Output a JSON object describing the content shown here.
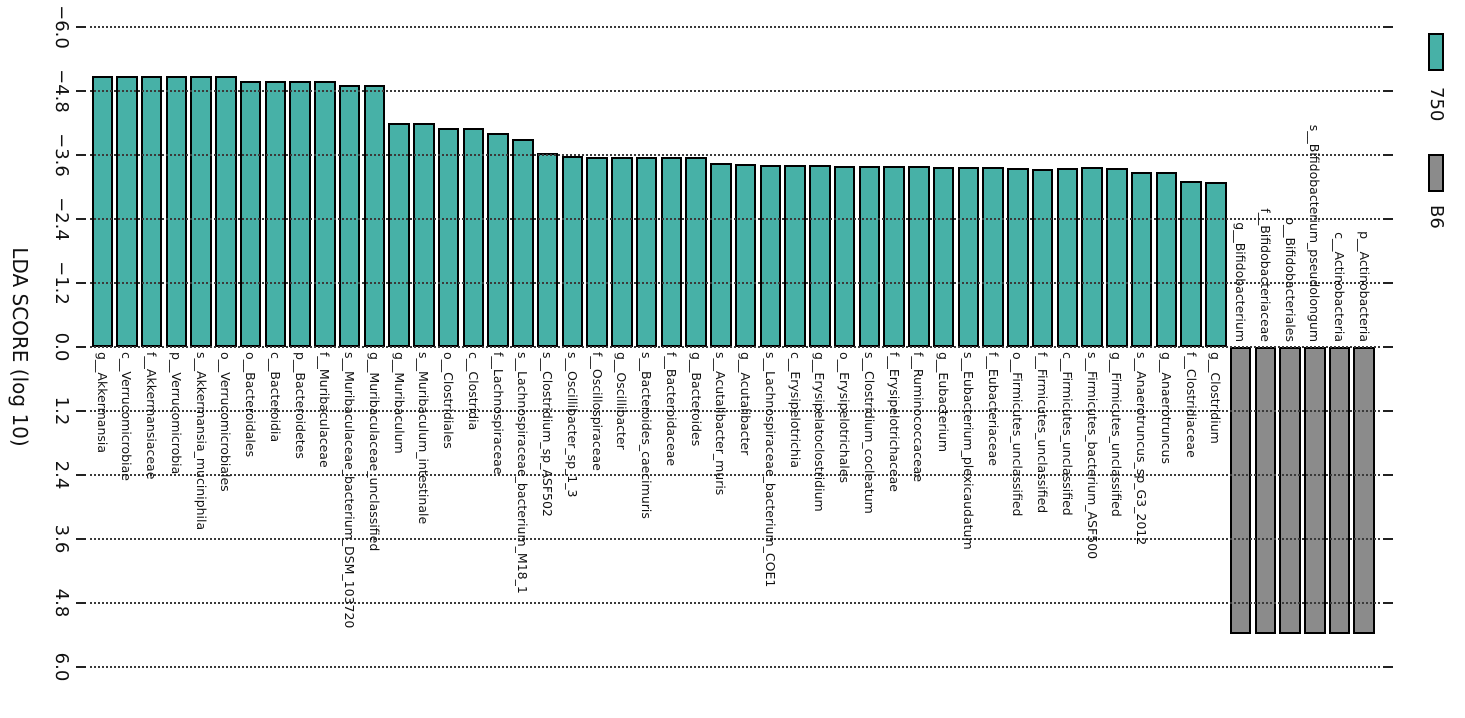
{
  "chart_data": {
    "type": "bar",
    "title": "",
    "axis_label": "LDA SCORE (log 10)",
    "axis_range": [
      -6.0,
      6.0
    ],
    "tick_values": [
      -6.0,
      -4.8,
      -3.6,
      -2.4,
      -1.2,
      0.0,
      1.2,
      2.4,
      3.6,
      4.8,
      6.0
    ],
    "tick_labels": [
      "−6.0",
      "−4.8",
      "−3.6",
      "−2.4",
      "−1.2",
      "0.0",
      "1.2",
      "2.4",
      "3.6",
      "4.8",
      "6.0"
    ],
    "grid": true,
    "legend_position": "top-right",
    "orientation": "rotated: group 750 plotted on negative side (bars up), group B6 on positive side (bars down)",
    "bar_border_color": "#000000",
    "legend": [
      {
        "label": "750",
        "color": "#47B1A7"
      },
      {
        "label": "B6",
        "color": "#8B8B8B"
      }
    ],
    "series": [
      {
        "name": "750",
        "side": "negative",
        "color": "#47B1A7",
        "bars": [
          {
            "taxon": "g__Akkermansia",
            "lda": 5.08
          },
          {
            "taxon": "c__Verrucomicrobiae",
            "lda": 5.08
          },
          {
            "taxon": "f__Akkermansiaceae",
            "lda": 5.08
          },
          {
            "taxon": "p__Verrucomicrobia",
            "lda": 5.08
          },
          {
            "taxon": "s__Akkermansia_muciniphila",
            "lda": 5.08
          },
          {
            "taxon": "o__Verrucomicrobiales",
            "lda": 5.08
          },
          {
            "taxon": "o__Bacteroidales",
            "lda": 4.99
          },
          {
            "taxon": "c__Bacteroidia",
            "lda": 4.99
          },
          {
            "taxon": "p__Bacteroidetes",
            "lda": 4.99
          },
          {
            "taxon": "f__Muribaculaceae",
            "lda": 4.99
          },
          {
            "taxon": "s__Muribaculaceae_bacterium_DSM_103720",
            "lda": 4.91
          },
          {
            "taxon": "g__Muribaculaceae_unclassified",
            "lda": 4.91
          },
          {
            "taxon": "g__Muribaculum",
            "lda": 4.2
          },
          {
            "taxon": "s__Muribaculum_intestinale",
            "lda": 4.2
          },
          {
            "taxon": "o__Clostridiales",
            "lda": 4.11
          },
          {
            "taxon": "c__Clostridia",
            "lda": 4.11
          },
          {
            "taxon": "f__Lachnospiraceae",
            "lda": 4.01
          },
          {
            "taxon": "s__Lachnospiraceae_bacterium_M18_1",
            "lda": 3.9
          },
          {
            "taxon": "s__Clostridium_sp_ASF502",
            "lda": 3.64
          },
          {
            "taxon": "s__Oscillibacter_sp_1_3",
            "lda": 3.58
          },
          {
            "taxon": "f__Oscillospiraceae",
            "lda": 3.57
          },
          {
            "taxon": "g__Oscillibacter",
            "lda": 3.57
          },
          {
            "taxon": "s__Bacteroides_caecimuris",
            "lda": 3.57
          },
          {
            "taxon": "f__Bacteroidaceae",
            "lda": 3.57
          },
          {
            "taxon": "g__Bacteroides",
            "lda": 3.56
          },
          {
            "taxon": "s__Acutalibacter_muris",
            "lda": 3.45
          },
          {
            "taxon": "g__Acutalibacter",
            "lda": 3.44
          },
          {
            "taxon": "s__Lachnospiraceae_bacterium_COE1",
            "lda": 3.42
          },
          {
            "taxon": "c__Erysipelotrichia",
            "lda": 3.41
          },
          {
            "taxon": "g__Erysipelatoclostridium",
            "lda": 3.41
          },
          {
            "taxon": "o__Erysipelotrichales",
            "lda": 3.4
          },
          {
            "taxon": "s__Clostridium_cocleatum",
            "lda": 3.4
          },
          {
            "taxon": "f__Erysipelotrichaceae",
            "lda": 3.4
          },
          {
            "taxon": "f__Ruminococcaceae",
            "lda": 3.39
          },
          {
            "taxon": "g__Eubacterium",
            "lda": 3.38
          },
          {
            "taxon": "s__Eubacterium_plexicaudatum",
            "lda": 3.38
          },
          {
            "taxon": "f__Eubacteriaceae",
            "lda": 3.37
          },
          {
            "taxon": "o__Firmicutes_unclassified",
            "lda": 3.36
          },
          {
            "taxon": "f__Firmicutes_unclassified",
            "lda": 3.34
          },
          {
            "taxon": "c__Firmicutes_unclassified",
            "lda": 3.36
          },
          {
            "taxon": "s__Firmicutes_bacterium_ASF500",
            "lda": 3.37
          },
          {
            "taxon": "g__Firmicutes_unclassified",
            "lda": 3.36
          },
          {
            "taxon": "s__Anaerotruncus_sp_G3_2012",
            "lda": 3.29
          },
          {
            "taxon": "g__Anaerotruncus",
            "lda": 3.29
          },
          {
            "taxon": "f__Clostridiaceae",
            "lda": 3.12
          },
          {
            "taxon": "g__Clostridium",
            "lda": 3.1
          }
        ]
      },
      {
        "name": "B6",
        "side": "positive",
        "color": "#8B8B8B",
        "bars": [
          {
            "taxon": "g__Bifidobacterium",
            "lda": 5.39
          },
          {
            "taxon": "f__Bifidobacteriaceae",
            "lda": 5.39
          },
          {
            "taxon": "o__Bifidobacteriales",
            "lda": 5.39
          },
          {
            "taxon": "s__Bifidobacterium_pseudolongum",
            "lda": 5.39
          },
          {
            "taxon": "c__Actinobacteria",
            "lda": 5.39
          },
          {
            "taxon": "p__Actinobacteria",
            "lda": 5.39
          }
        ]
      }
    ]
  }
}
